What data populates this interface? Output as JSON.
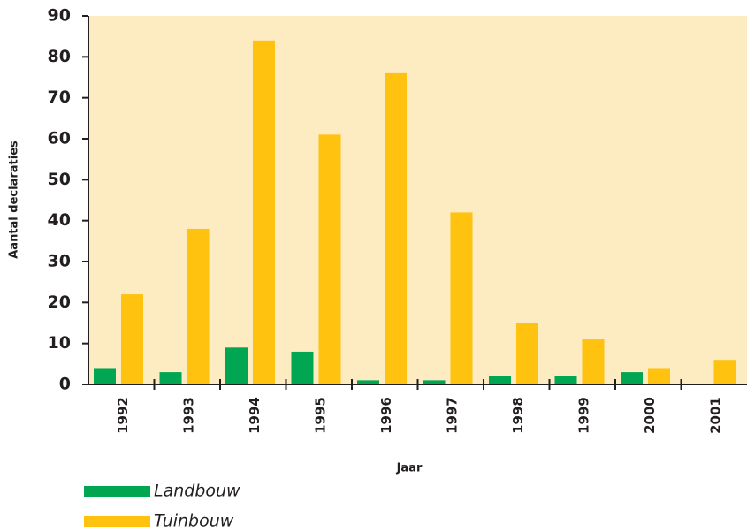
{
  "chart_data": {
    "type": "bar",
    "categories": [
      "1992",
      "1993",
      "1994",
      "1995",
      "1996",
      "1997",
      "1998",
      "1999",
      "2000",
      "2001"
    ],
    "series": [
      {
        "name": "Landbouw",
        "color": "#00a651",
        "values": [
          4,
          3,
          9,
          8,
          1,
          1,
          2,
          2,
          3,
          0
        ]
      },
      {
        "name": "Tuinbouw",
        "color": "#ffc20e",
        "values": [
          22,
          38,
          84,
          61,
          76,
          42,
          15,
          11,
          4,
          6
        ]
      }
    ],
    "xlabel": "Jaar",
    "ylabel": "Aantal declaraties",
    "ylim": [
      0,
      90
    ],
    "yticks": [
      0,
      10,
      20,
      30,
      40,
      50,
      60,
      70,
      80,
      90
    ],
    "background": "#fdebc2"
  }
}
